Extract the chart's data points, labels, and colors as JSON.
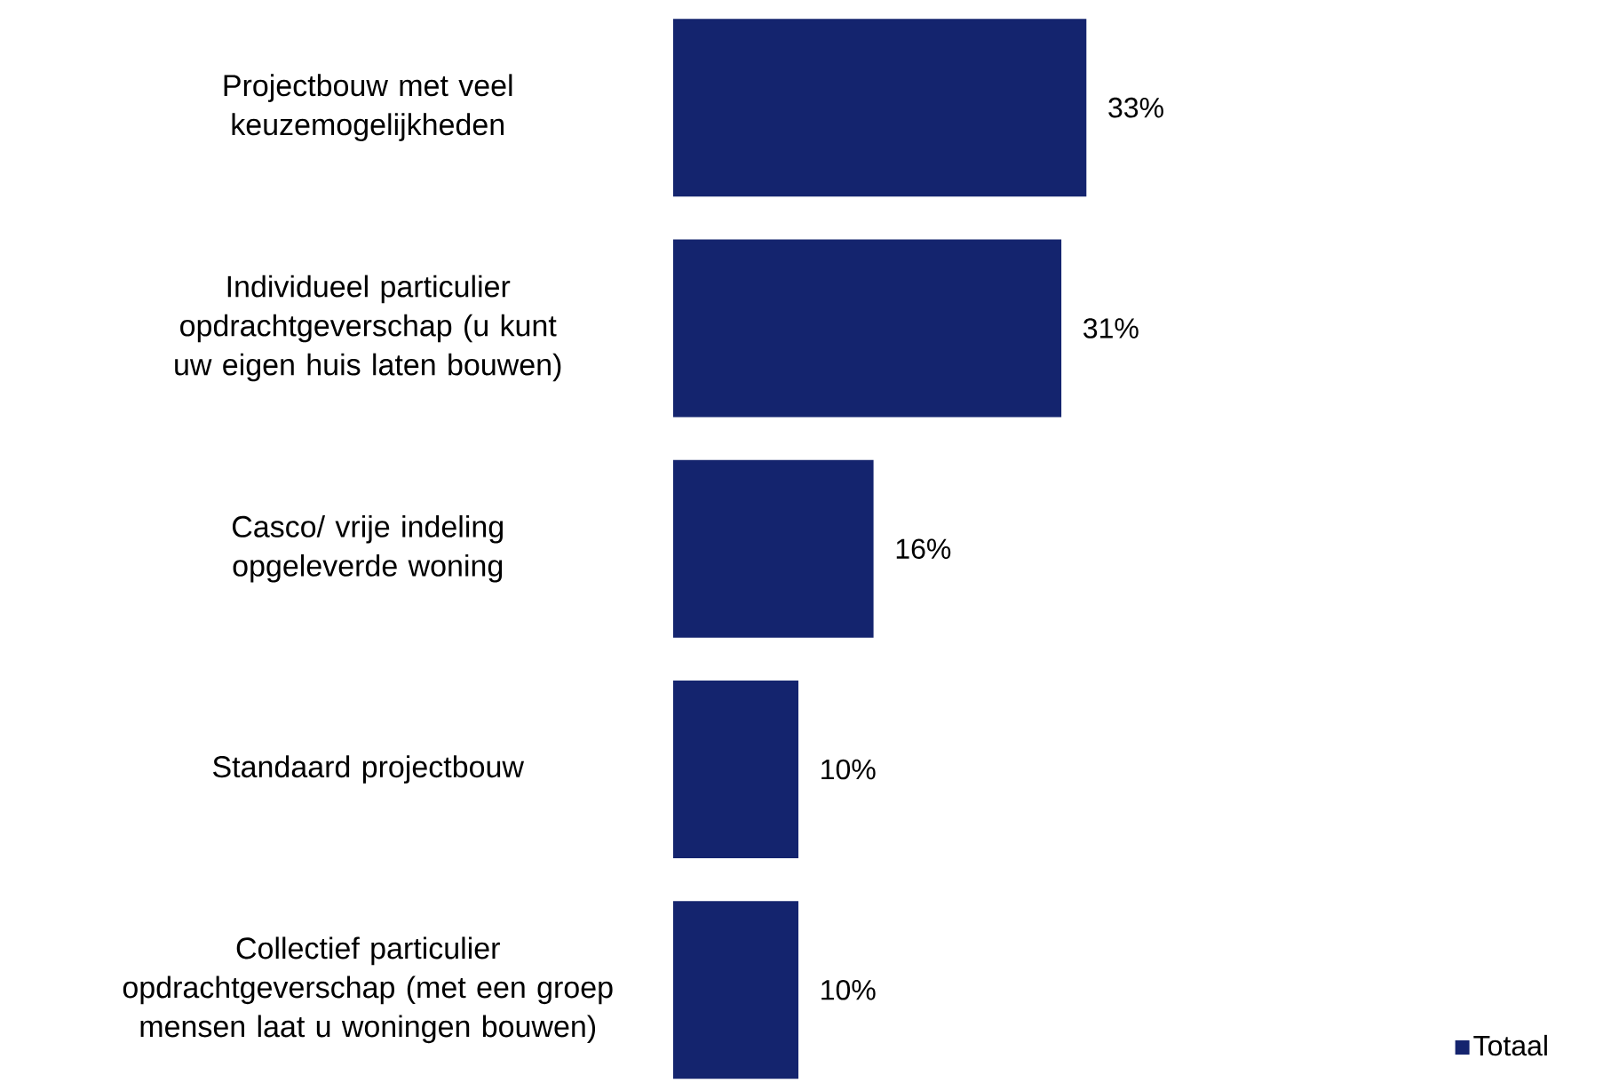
{
  "chart_data": {
    "type": "bar",
    "orientation": "horizontal",
    "categories": [
      "Projectbouw met veel keuzemogelijkheden",
      "Individueel particulier opdrachtgeverschap (u kunt uw eigen huis laten bouwen)",
      "Casco/ vrije indeling opgeleverde woning",
      "Standaard projectbouw",
      "Collectief particulier opdrachtgeverschap (met een groep mensen laat u woningen bouwen)"
    ],
    "series": [
      {
        "name": "Totaal",
        "color": "#14246e",
        "values": [
          33,
          31,
          16,
          10,
          10
        ],
        "value_labels": [
          "33%",
          "31%",
          "16%",
          "10%",
          "10%"
        ]
      }
    ],
    "legend": "bottom right"
  }
}
